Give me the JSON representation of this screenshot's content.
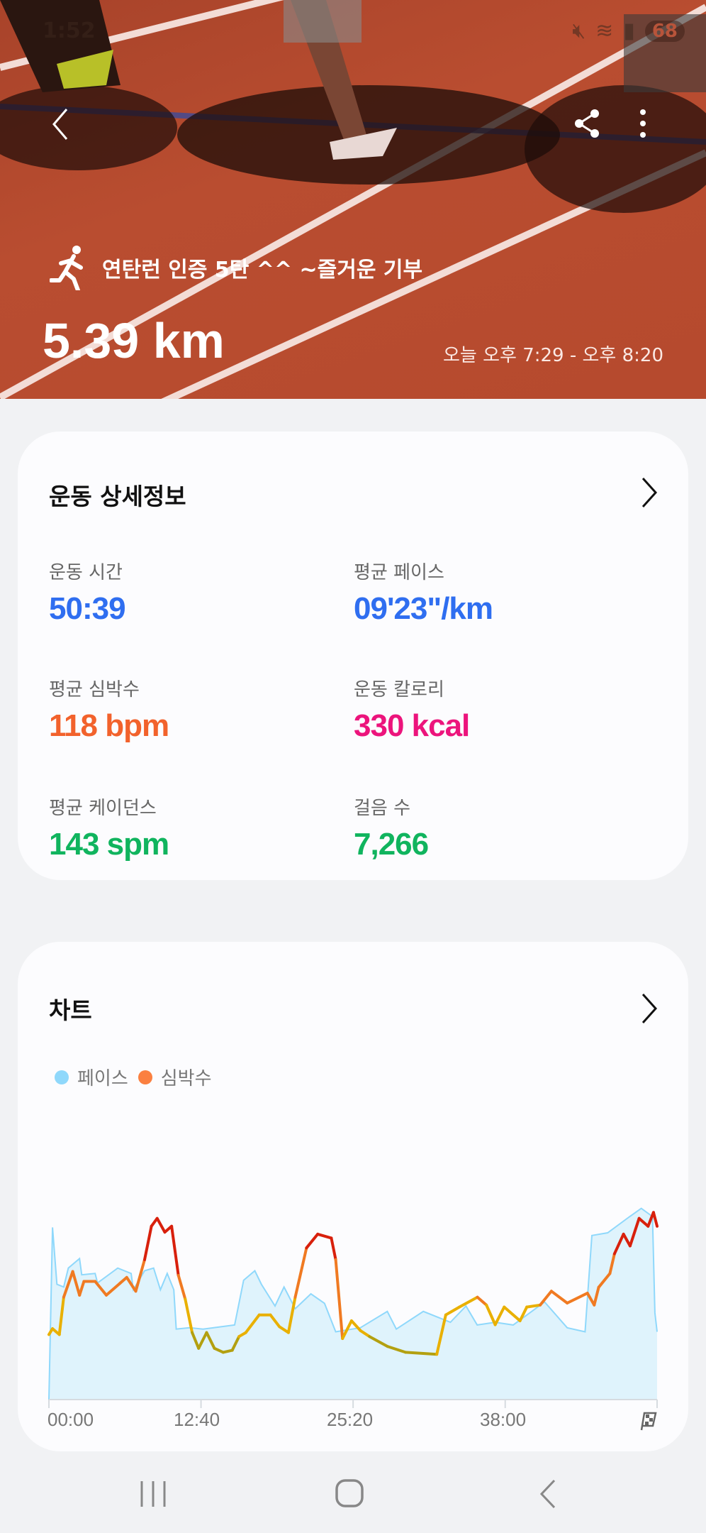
{
  "status_bar": {
    "time": "1:52",
    "battery": "68"
  },
  "hero": {
    "title": "연탄런 인증 5탄 ^^ ~즐거운 기부",
    "distance": "5.39 km",
    "time_range": "오늘 오후 7:29 - 오후 8:20",
    "icons": [
      "back-icon",
      "share-icon",
      "more-icon",
      "running-icon"
    ]
  },
  "details": {
    "title": "운동 상세정보",
    "stats": [
      {
        "label": "운동 시간",
        "value": "50:39",
        "color": "#2f6ef0"
      },
      {
        "label": "평균 페이스",
        "value": "09'23\"/km",
        "color": "#2f6ef0"
      },
      {
        "label": "평균 심박수",
        "value": "118 bpm",
        "color": "#f2622c"
      },
      {
        "label": "운동 칼로리",
        "value": "330 kcal",
        "color": "#ec147c"
      },
      {
        "label": "평균 케이던스",
        "value": "143 spm",
        "color": "#10b45e"
      },
      {
        "label": "걸음 수",
        "value": "7,266",
        "color": "#10b45e"
      }
    ]
  },
  "chart": {
    "title": "차트",
    "legend": [
      {
        "label": "페이스",
        "color": "#8fd8fb"
      },
      {
        "label": "심박수",
        "color": "#fb8040"
      }
    ]
  },
  "chart_data": {
    "type": "line",
    "x_unit": "seconds elapsed",
    "xlim": [
      0,
      3039
    ],
    "x_ticks": [
      "00:00",
      "12:40",
      "25:20",
      "38:00"
    ],
    "x_end_marker": "finish-flag-icon",
    "grid": false,
    "legend_placement": "top-left",
    "series": [
      {
        "name": "페이스",
        "style": "area",
        "color": "#8fd8fb",
        "fill": "#dff3fc",
        "points": [
          [
            0,
            0
          ],
          [
            18,
            12.7
          ],
          [
            40,
            8.5
          ],
          [
            74,
            8.3
          ],
          [
            97,
            9.7
          ],
          [
            153,
            10.4
          ],
          [
            164,
            9.2
          ],
          [
            231,
            9.3
          ],
          [
            243,
            8.6
          ],
          [
            344,
            9.7
          ],
          [
            411,
            9.3
          ],
          [
            422,
            8.1
          ],
          [
            478,
            9.5
          ],
          [
            523,
            9.7
          ],
          [
            557,
            8.1
          ],
          [
            591,
            9.3
          ],
          [
            624,
            8.1
          ],
          [
            636,
            5.2
          ],
          [
            703,
            5.3
          ],
          [
            770,
            5.2
          ],
          [
            928,
            5.5
          ],
          [
            973,
            8.8
          ],
          [
            1029,
            9.5
          ],
          [
            1062,
            8.5
          ],
          [
            1130,
            6.9
          ],
          [
            1175,
            8.3
          ],
          [
            1231,
            6.7
          ],
          [
            1309,
            7.8
          ],
          [
            1377,
            7.1
          ],
          [
            1433,
            5.0
          ],
          [
            1556,
            5.3
          ],
          [
            1691,
            6.5
          ],
          [
            1736,
            5.2
          ],
          [
            1871,
            6.5
          ],
          [
            2006,
            5.7
          ],
          [
            2084,
            6.9
          ],
          [
            2140,
            5.5
          ],
          [
            2230,
            5.7
          ],
          [
            2320,
            5.5
          ],
          [
            2477,
            7.2
          ],
          [
            2590,
            5.3
          ],
          [
            2679,
            5.0
          ],
          [
            2713,
            12.1
          ],
          [
            2792,
            12.3
          ],
          [
            2893,
            13.4
          ],
          [
            2960,
            14.1
          ],
          [
            3016,
            13.5
          ],
          [
            3028,
            6.4
          ],
          [
            3039,
            5.0
          ]
        ]
      },
      {
        "name": "심박수",
        "style": "line",
        "colors": {
          "low": "#b3a010",
          "mid": "#e9b000",
          "high": "#f07a22",
          "max": "#d8200c"
        },
        "points": [
          [
            0,
            105
          ],
          [
            18,
            108
          ],
          [
            52,
            105
          ],
          [
            74,
            124
          ],
          [
            119,
            137
          ],
          [
            153,
            125
          ],
          [
            175,
            132
          ],
          [
            231,
            132
          ],
          [
            287,
            125
          ],
          [
            355,
            131
          ],
          [
            389,
            134
          ],
          [
            434,
            127
          ],
          [
            478,
            143
          ],
          [
            512,
            160
          ],
          [
            541,
            164
          ],
          [
            579,
            157
          ],
          [
            613,
            160
          ],
          [
            647,
            135
          ],
          [
            681,
            123
          ],
          [
            716,
            106
          ],
          [
            748,
            98
          ],
          [
            788,
            106
          ],
          [
            827,
            98
          ],
          [
            871,
            96
          ],
          [
            916,
            97
          ],
          [
            950,
            104
          ],
          [
            984,
            106
          ],
          [
            1051,
            115
          ],
          [
            1107,
            115
          ],
          [
            1152,
            109
          ],
          [
            1197,
            106
          ],
          [
            1231,
            124
          ],
          [
            1287,
            149
          ],
          [
            1343,
            156
          ],
          [
            1411,
            154
          ],
          [
            1433,
            143
          ],
          [
            1467,
            103
          ],
          [
            1512,
            112
          ],
          [
            1557,
            107
          ],
          [
            1602,
            104
          ],
          [
            1692,
            99
          ],
          [
            1782,
            96
          ],
          [
            1938,
            95
          ],
          [
            1983,
            115
          ],
          [
            2051,
            119
          ],
          [
            2141,
            124
          ],
          [
            2186,
            120
          ],
          [
            2230,
            110
          ],
          [
            2275,
            119
          ],
          [
            2354,
            112
          ],
          [
            2388,
            119
          ],
          [
            2455,
            120
          ],
          [
            2511,
            127
          ],
          [
            2590,
            121
          ],
          [
            2691,
            126
          ],
          [
            2725,
            120
          ],
          [
            2747,
            129
          ],
          [
            2803,
            136
          ],
          [
            2826,
            146
          ],
          [
            2871,
            156
          ],
          [
            2904,
            150
          ],
          [
            2949,
            164
          ],
          [
            2994,
            160
          ],
          [
            3021,
            167
          ],
          [
            3039,
            160
          ]
        ]
      }
    ]
  }
}
